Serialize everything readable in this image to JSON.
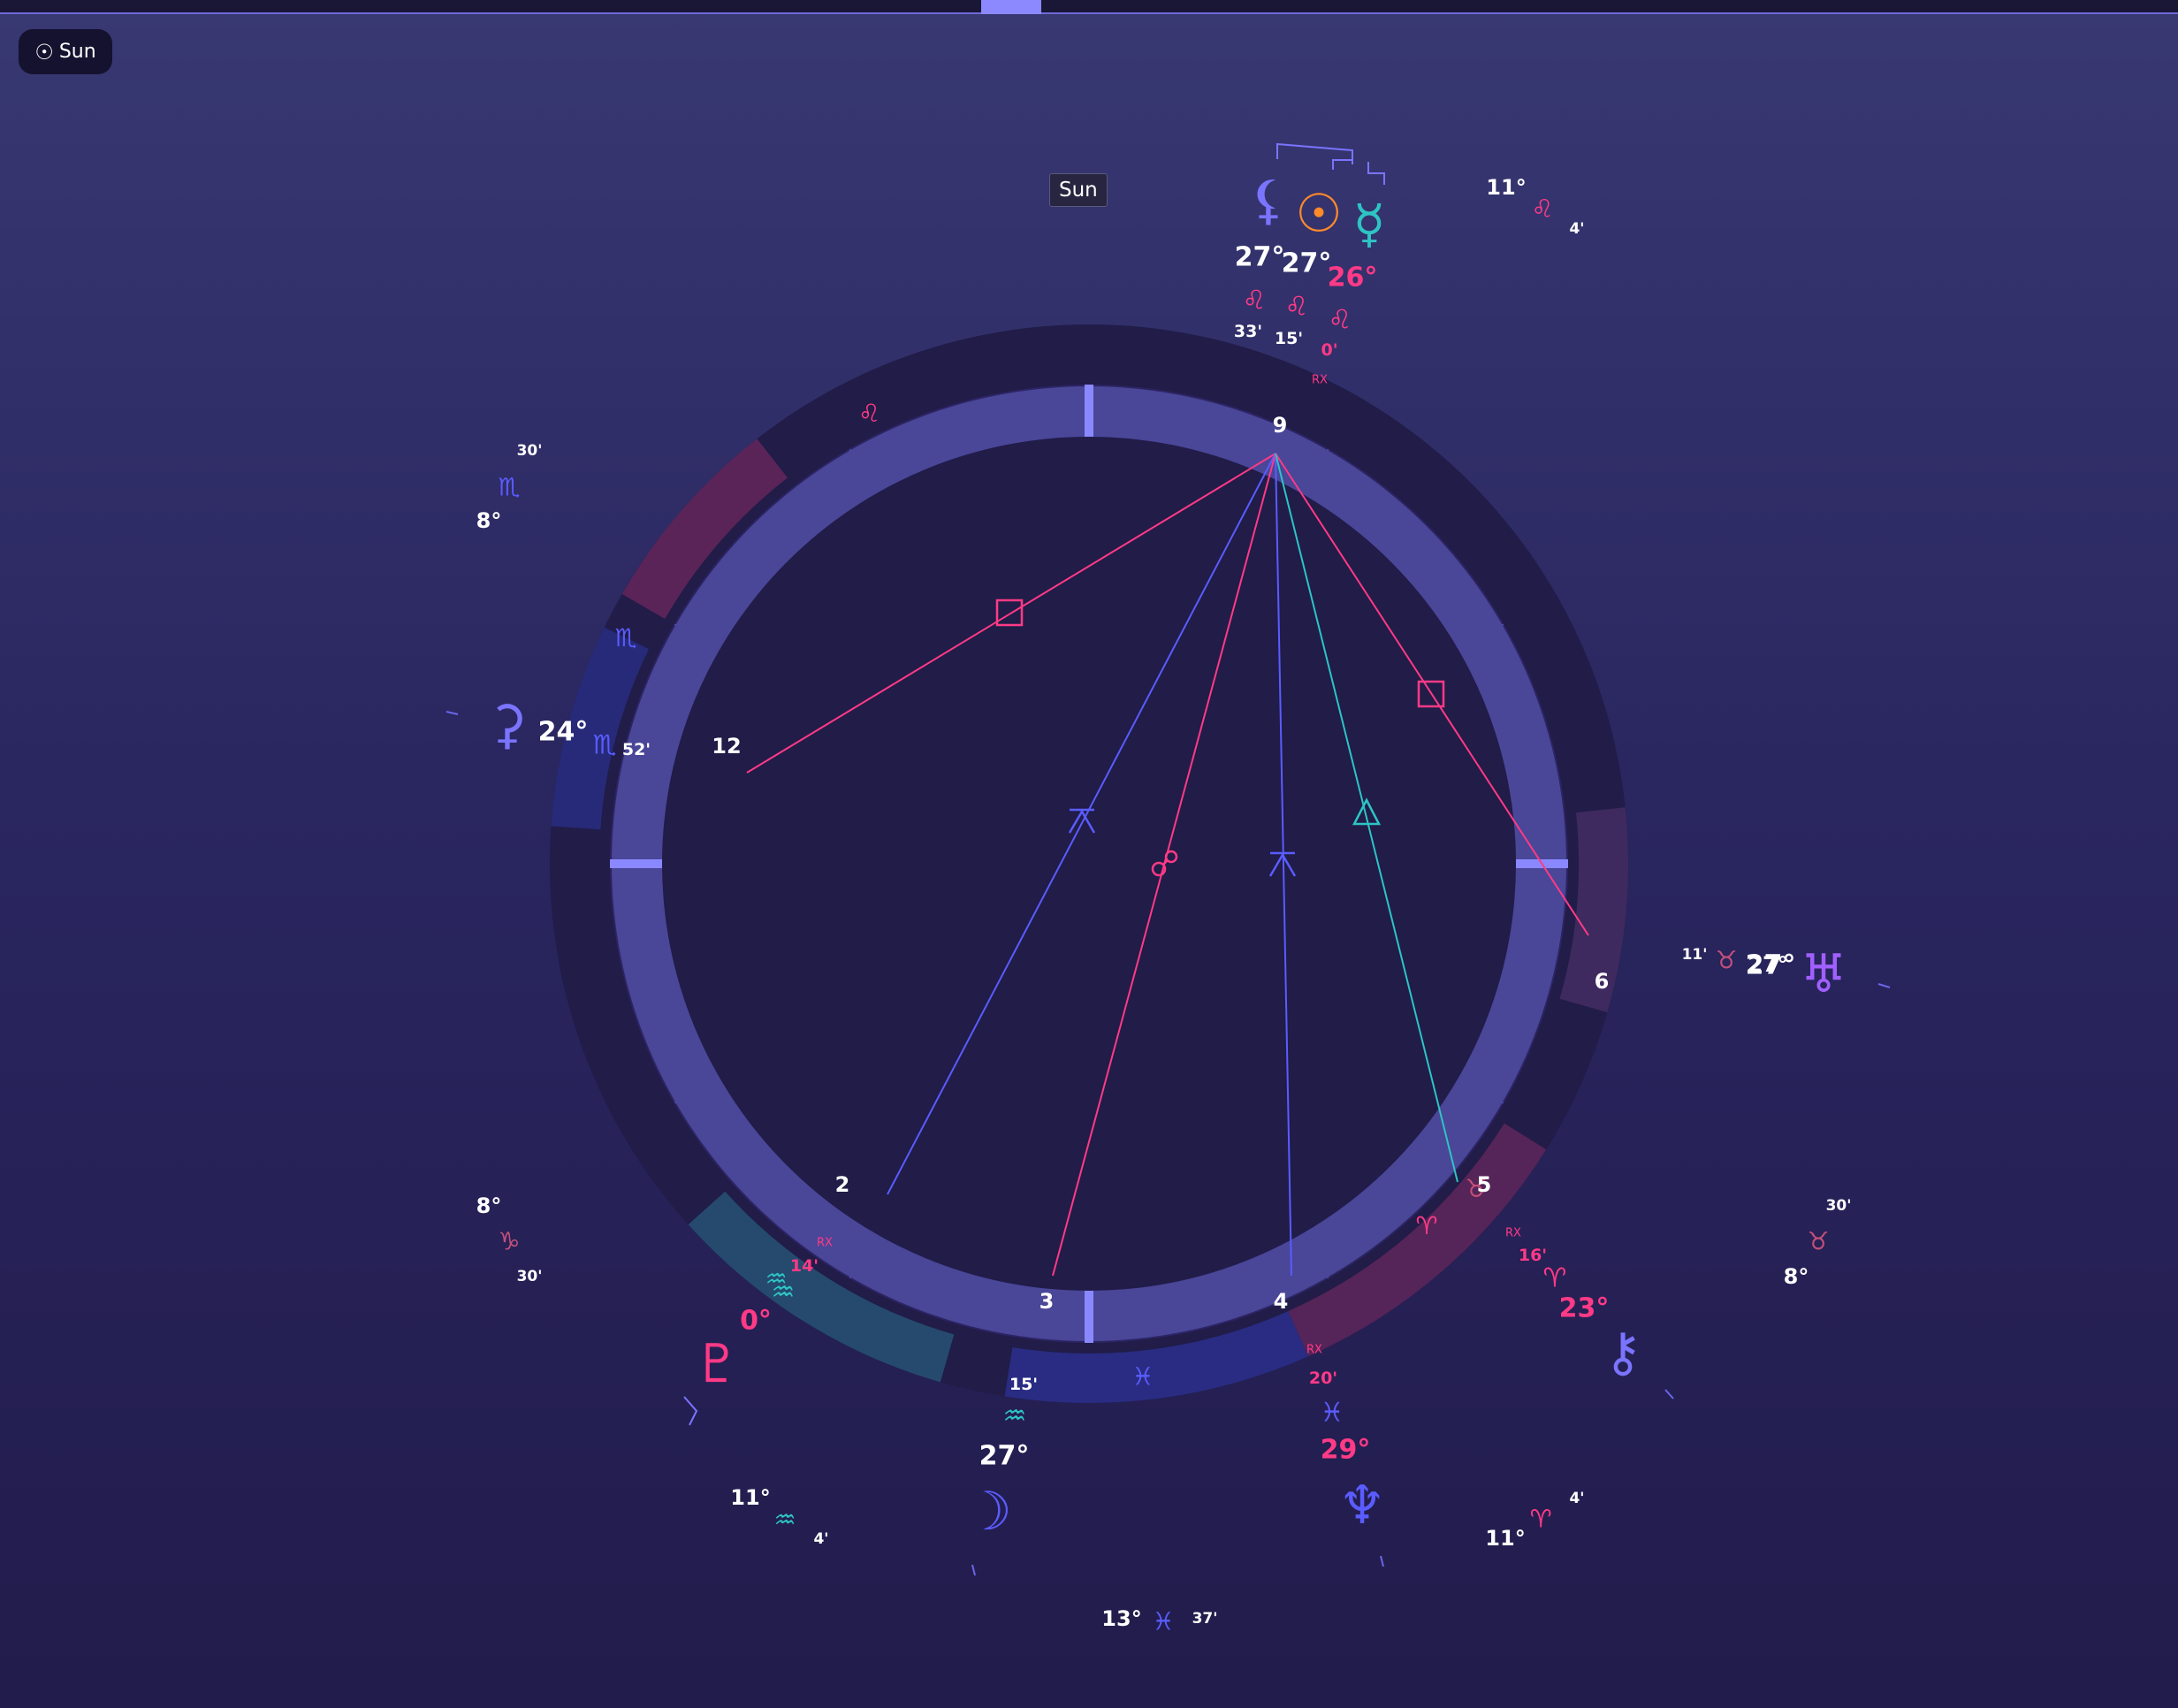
{
  "top_chip": {
    "label": "Sun",
    "icon": "sun-icon",
    "glyph": "☉"
  },
  "tooltip": {
    "text": "Sun"
  },
  "colors": {
    "ring_outer": "#211c48",
    "house_fill": "#2c2462",
    "house_ring": "#4a4698",
    "center": "#211c48",
    "axis": "#8a88ff",
    "divider": "#6a66e8",
    "pink": "#ff3a86",
    "blue": "#5a5cff",
    "teal": "#2ec4c4",
    "violet": "#7a74ff",
    "orange": "#ff8a2a",
    "purple": "#a060ff",
    "dim_pink": "#c2507a"
  },
  "houses": [
    {
      "number": "9"
    },
    {
      "number": "12"
    },
    {
      "number": "6"
    },
    {
      "number": "2"
    },
    {
      "number": "5"
    },
    {
      "number": "3"
    },
    {
      "number": "4"
    }
  ],
  "sign_arcs": [
    {
      "sign": "Leo",
      "glyph": "♌",
      "color": "#5a2458",
      "glyph_color": "#ff3a86"
    },
    {
      "sign": "Scorpio",
      "glyph": "♏",
      "color": "#272a78",
      "glyph_color": "#5a5cff"
    },
    {
      "sign": "Taurus",
      "glyph": "♉",
      "color": "#3e2a5e",
      "glyph_color": "#c2507a"
    },
    {
      "sign": "Aries",
      "glyph": "♈",
      "color": "#552458",
      "glyph_color": "#ff3a86"
    },
    {
      "sign": "Pisces",
      "glyph": "♓",
      "color": "#292c82",
      "glyph_color": "#5a5cff"
    },
    {
      "sign": "Aquarius",
      "glyph": "♒",
      "color": "#254a6e",
      "glyph_color": "#2ec4c4"
    }
  ],
  "cusps": [
    {
      "deg": "11°",
      "min": "4'",
      "glyph": "♌",
      "color": "#ff3a86"
    },
    {
      "deg": "8°",
      "min": "30'",
      "glyph": "♏",
      "color": "#5a5cff"
    },
    {
      "deg": "8°",
      "min": "30'",
      "glyph": "♑",
      "color": "#c2507a"
    },
    {
      "deg": "11°",
      "min": "4'",
      "glyph": "♒",
      "color": "#2ec4c4"
    },
    {
      "deg": "13°",
      "min": "37'",
      "glyph": "♓",
      "color": "#5a5cff"
    },
    {
      "deg": "11°",
      "min": "4'",
      "glyph": "♈",
      "color": "#ff3a86"
    },
    {
      "deg": "8°",
      "min": "30'",
      "glyph": "♉",
      "color": "#c2507a"
    },
    {
      "deg": "27°",
      "min": "11'",
      "glyph": "♉",
      "color": "#c2507a"
    }
  ],
  "planets": [
    {
      "name": "Node",
      "icon": "north-node-icon",
      "glyph": "⚸",
      "deg": "27°",
      "sign_glyph": "♌",
      "min": "33'",
      "rx": "",
      "color": "#7a74ff",
      "sign_color": "#ff3a86",
      "text_color": "#ffffff"
    },
    {
      "name": "Sun",
      "icon": "sun-icon",
      "glyph": "☉",
      "deg": "27°",
      "sign_glyph": "♌",
      "min": "15'",
      "rx": "",
      "color": "#ff8a2a",
      "sign_color": "#ff3a86",
      "text_color": "#ffffff"
    },
    {
      "name": "Mercury",
      "icon": "mercury-icon",
      "glyph": "☿",
      "deg": "26°",
      "sign_glyph": "♌",
      "min": "0'",
      "rx": "RX",
      "color": "#2ec4c4",
      "sign_color": "#ff3a86",
      "text_color": "#ff3a86"
    },
    {
      "name": "Ceres",
      "icon": "ceres-icon",
      "glyph": "⚳",
      "deg": "24°",
      "sign_glyph": "♏",
      "min": "52'",
      "rx": "",
      "color": "#7a74ff",
      "sign_color": "#5a5cff",
      "text_color": "#ffffff"
    },
    {
      "name": "Uranus",
      "icon": "uranus-icon",
      "glyph": "♅",
      "deg": "27°",
      "sign_glyph": "♉",
      "min": "11'",
      "rx": "",
      "color": "#a060ff",
      "sign_color": "#c2507a",
      "text_color": "#ffffff"
    },
    {
      "name": "Chiron",
      "icon": "chiron-icon",
      "glyph": "⚷",
      "deg": "23°",
      "sign_glyph": "♈",
      "min": "16'",
      "rx": "RX",
      "color": "#7a74ff",
      "sign_color": "#ff3a86",
      "text_color": "#ff3a86"
    },
    {
      "name": "Neptune",
      "icon": "neptune-icon",
      "glyph": "♆",
      "deg": "29°",
      "sign_glyph": "♓",
      "min": "20'",
      "rx": "RX",
      "color": "#5a5cff",
      "sign_color": "#5a5cff",
      "text_color": "#ff3a86"
    },
    {
      "name": "Moon",
      "icon": "moon-icon",
      "glyph": "☽",
      "deg": "27°",
      "sign_glyph": "♒",
      "min": "15'",
      "rx": "",
      "color": "#5a5cff",
      "sign_color": "#2ec4c4",
      "text_color": "#ffffff"
    },
    {
      "name": "Pluto",
      "icon": "pluto-icon",
      "glyph": "♇",
      "deg": "0°",
      "sign_glyph": "♒",
      "min": "14'",
      "rx": "RX",
      "color": "#ff3a86",
      "sign_color": "#2ec4c4",
      "text_color": "#ff3a86"
    }
  ],
  "aspects": [
    {
      "to": "Ceres",
      "type": "square",
      "glyph": "□",
      "color": "#ff3a86"
    },
    {
      "to": "Uranus",
      "type": "square",
      "glyph": "□",
      "color": "#ff3a86"
    },
    {
      "to": "Pluto",
      "type": "quincunx",
      "glyph": "⚻",
      "color": "#5a5cff"
    },
    {
      "to": "Moon",
      "type": "opposition",
      "glyph": "☍",
      "color": "#ff3a86"
    },
    {
      "to": "Neptune",
      "type": "quincunx",
      "glyph": "⚻",
      "color": "#5a5cff"
    },
    {
      "to": "Chiron",
      "type": "trine",
      "glyph": "△",
      "color": "#2ec4c4"
    }
  ]
}
